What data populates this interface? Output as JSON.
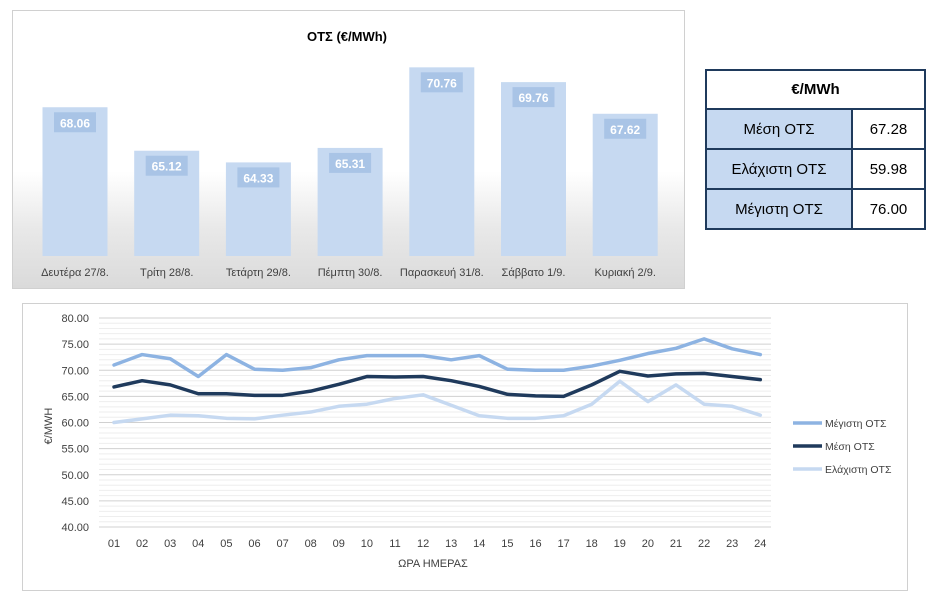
{
  "chart_data": [
    {
      "type": "bar",
      "title": "ΟΤΣ (€/MWh)",
      "categories": [
        "Δευτέρα 27/8.",
        "Τρίτη 28/8.",
        "Τετάρτη 29/8.",
        "Πέμπτη 30/8.",
        "Παρασκευή 31/8.",
        "Σάββατο 1/9.",
        "Κυριακή 2/9."
      ],
      "values": [
        68.06,
        65.12,
        64.33,
        65.31,
        70.76,
        69.76,
        67.62
      ],
      "value_labels": [
        "68.06",
        "65.12",
        "64.33",
        "65.31",
        "70.76",
        "69.76",
        "67.62"
      ],
      "ylim": [
        58,
        72
      ],
      "bar_color": "#c6d9f1",
      "label_box_color": "#a9c4e6",
      "grid": false
    },
    {
      "type": "line",
      "xlabel": "ΩΡΑ ΗΜΕΡΑΣ",
      "ylabel": "€/MWH",
      "ylim": [
        40,
        80
      ],
      "yticks": [
        "40.00",
        "45.00",
        "50.00",
        "55.00",
        "60.00",
        "65.00",
        "70.00",
        "75.00",
        "80.00"
      ],
      "x": [
        "01",
        "02",
        "03",
        "04",
        "05",
        "06",
        "07",
        "08",
        "09",
        "10",
        "11",
        "12",
        "13",
        "14",
        "15",
        "16",
        "17",
        "18",
        "19",
        "20",
        "21",
        "22",
        "23",
        "24"
      ],
      "grid": true,
      "legend_position": "right",
      "series": [
        {
          "name": "Μέγιστη ΟΤΣ",
          "color": "#8db3e2",
          "values": [
            71.0,
            73.0,
            72.2,
            68.8,
            73.0,
            70.2,
            70.0,
            70.5,
            72.0,
            72.8,
            72.8,
            72.8,
            72.0,
            72.8,
            70.2,
            70.0,
            70.0,
            70.8,
            71.9,
            73.2,
            74.2,
            76.0,
            74.1,
            73.0
          ]
        },
        {
          "name": "Μέση ΟΤΣ",
          "color": "#1f3a5c",
          "values": [
            66.8,
            68.0,
            67.2,
            65.5,
            65.5,
            65.2,
            65.2,
            66.0,
            67.3,
            68.8,
            68.7,
            68.8,
            68.0,
            66.9,
            65.4,
            65.1,
            65.0,
            67.2,
            69.8,
            68.9,
            69.3,
            69.4,
            68.8,
            68.2
          ]
        },
        {
          "name": "Ελάχιστη ΟΤΣ",
          "color": "#c6d9f1",
          "values": [
            60.0,
            60.7,
            61.4,
            61.3,
            60.8,
            60.7,
            61.4,
            62.0,
            63.1,
            63.5,
            64.6,
            65.3,
            63.3,
            61.3,
            60.8,
            60.8,
            61.3,
            63.5,
            67.9,
            64.0,
            67.2,
            63.5,
            63.1,
            61.4
          ]
        }
      ]
    }
  ],
  "stats_table": {
    "header": "€/MWh",
    "rows": [
      {
        "label": "Μέση ΟΤΣ",
        "value": "67.28"
      },
      {
        "label": "Ελάχιστη ΟΤΣ",
        "value": "59.98"
      },
      {
        "label": "Μέγιστη ΟΤΣ",
        "value": "76.00"
      }
    ]
  }
}
